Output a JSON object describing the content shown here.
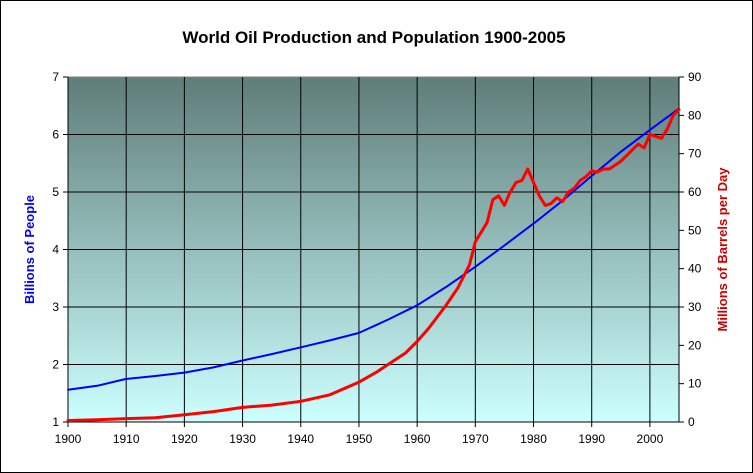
{
  "chart_data": {
    "type": "line",
    "title": "World Oil Production and Population 1900-2005",
    "xlabel": "",
    "xlim": [
      1900,
      2005
    ],
    "x_ticks": [
      "1900",
      "1910",
      "1920",
      "1930",
      "1940",
      "1950",
      "1960",
      "1970",
      "1980",
      "1990",
      "2000"
    ],
    "y_left": {
      "label": "Billions of People",
      "ylim": [
        1,
        7
      ],
      "ticks": [
        "1",
        "2",
        "3",
        "4",
        "5",
        "6",
        "7"
      ],
      "color": "#0000ff"
    },
    "y_right": {
      "label": "Millions of Barrels per Day",
      "ylim": [
        0,
        90
      ],
      "ticks": [
        "0",
        "10",
        "20",
        "30",
        "40",
        "50",
        "60",
        "70",
        "80",
        "90"
      ],
      "color": "#cc0000"
    },
    "grid": true,
    "background_gradient": [
      "#5f7d79",
      "#ccffff"
    ],
    "series": [
      {
        "axis": "left",
        "color": "#0000ff",
        "points": [
          [
            1900,
            1.56
          ],
          [
            1905,
            1.63
          ],
          [
            1910,
            1.75
          ],
          [
            1915,
            1.8
          ],
          [
            1920,
            1.86
          ],
          [
            1925,
            1.95
          ],
          [
            1930,
            2.07
          ],
          [
            1935,
            2.18
          ],
          [
            1940,
            2.3
          ],
          [
            1945,
            2.42
          ],
          [
            1950,
            2.55
          ],
          [
            1955,
            2.78
          ],
          [
            1960,
            3.03
          ],
          [
            1965,
            3.35
          ],
          [
            1970,
            3.7
          ],
          [
            1975,
            4.07
          ],
          [
            1980,
            4.45
          ],
          [
            1985,
            4.85
          ],
          [
            1990,
            5.28
          ],
          [
            1995,
            5.7
          ],
          [
            2000,
            6.08
          ],
          [
            2005,
            6.45
          ]
        ]
      },
      {
        "axis": "right",
        "color": "#ff0000",
        "points": [
          [
            1900,
            0.4
          ],
          [
            1905,
            0.6
          ],
          [
            1910,
            0.9
          ],
          [
            1915,
            1.1
          ],
          [
            1920,
            1.9
          ],
          [
            1925,
            2.7
          ],
          [
            1930,
            3.8
          ],
          [
            1935,
            4.4
          ],
          [
            1940,
            5.4
          ],
          [
            1945,
            7.1
          ],
          [
            1950,
            10.4
          ],
          [
            1953,
            13.0
          ],
          [
            1955,
            15.0
          ],
          [
            1958,
            18.0
          ],
          [
            1960,
            21.0
          ],
          [
            1962,
            24.5
          ],
          [
            1965,
            30.5
          ],
          [
            1967,
            35.0
          ],
          [
            1969,
            41.0
          ],
          [
            1970,
            47.0
          ],
          [
            1972,
            52.0
          ],
          [
            1973,
            58.0
          ],
          [
            1974,
            59.0
          ],
          [
            1975,
            56.5
          ],
          [
            1976,
            60.0
          ],
          [
            1977,
            62.5
          ],
          [
            1978,
            63.0
          ],
          [
            1979,
            66.0
          ],
          [
            1980,
            62.5
          ],
          [
            1981,
            59.0
          ],
          [
            1982,
            56.5
          ],
          [
            1983,
            57.0
          ],
          [
            1984,
            58.5
          ],
          [
            1985,
            57.5
          ],
          [
            1986,
            60.0
          ],
          [
            1987,
            61.0
          ],
          [
            1988,
            63.0
          ],
          [
            1989,
            64.0
          ],
          [
            1990,
            65.5
          ],
          [
            1991,
            65.2
          ],
          [
            1992,
            66.0
          ],
          [
            1993,
            66.0
          ],
          [
            1994,
            67.0
          ],
          [
            1995,
            68.0
          ],
          [
            1996,
            69.5
          ],
          [
            1997,
            71.0
          ],
          [
            1998,
            72.5
          ],
          [
            1999,
            71.5
          ],
          [
            2000,
            75.0
          ],
          [
            2001,
            74.5
          ],
          [
            2002,
            74.0
          ],
          [
            2003,
            76.5
          ],
          [
            2004,
            80.0
          ],
          [
            2005,
            81.5
          ]
        ]
      }
    ]
  }
}
